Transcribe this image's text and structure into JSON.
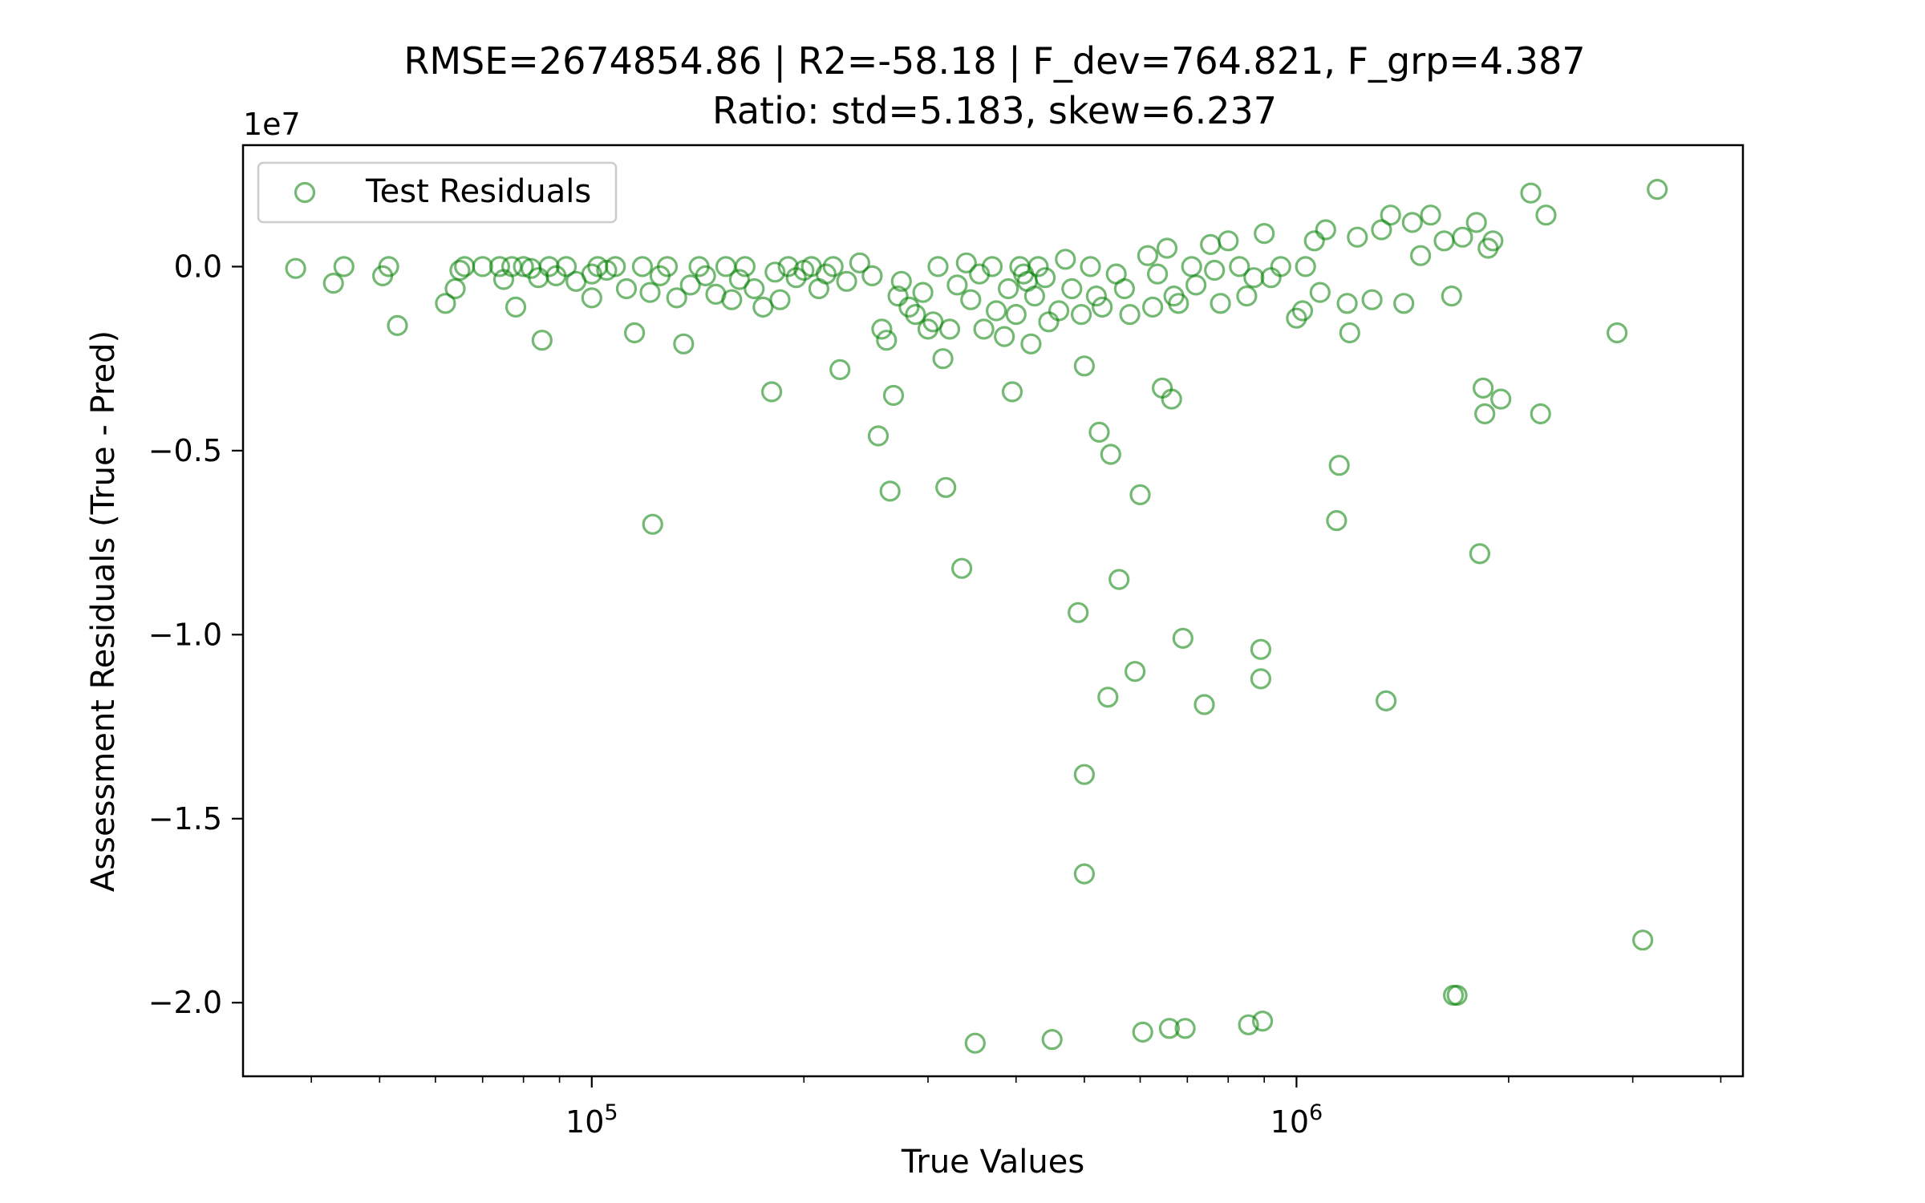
{
  "chart_data": {
    "type": "scatter",
    "title": "RMSE=2674854.86 | R2=-58.18 | F_dev=764.821, F_grp=4.387",
    "subtitle": "Ratio: std=5.183, skew=6.237",
    "xlabel": "True Values",
    "ylabel": "Assessment Residuals (True - Pred)",
    "x_scale": "log",
    "y_offset_label": "1e7",
    "xlim": [
      32000,
      4300000
    ],
    "ylim": [
      -22000000,
      3300000
    ],
    "x_ticks": [
      {
        "value": 100000,
        "base": "10",
        "exp": "5"
      },
      {
        "value": 1000000,
        "base": "10",
        "exp": "6"
      }
    ],
    "y_ticks": [
      {
        "value": 0,
        "label": "0.0"
      },
      {
        "value": -5000000,
        "label": "−0.5"
      },
      {
        "value": -10000000,
        "label": "−1.0"
      },
      {
        "value": -15000000,
        "label": "−1.5"
      },
      {
        "value": -20000000,
        "label": "−2.0"
      }
    ],
    "grid": false,
    "legend": {
      "position": "upper-left",
      "entries": [
        "Test Residuals"
      ]
    },
    "colors": {
      "marker": "#008000",
      "axes": "#000000",
      "background": "#ffffff"
    },
    "series": [
      {
        "name": "Test Residuals",
        "points": [
          [
            38000,
            -50000
          ],
          [
            43000,
            -450000
          ],
          [
            44500,
            0
          ],
          [
            50500,
            -250000
          ],
          [
            51500,
            0
          ],
          [
            53000,
            -1600000
          ],
          [
            62000,
            -1000000
          ],
          [
            64000,
            -600000
          ],
          [
            65000,
            -100000
          ],
          [
            66000,
            0
          ],
          [
            70000,
            0
          ],
          [
            74000,
            0
          ],
          [
            75000,
            -350000
          ],
          [
            77000,
            0
          ],
          [
            78000,
            -1100000
          ],
          [
            80000,
            0
          ],
          [
            82000,
            -50000
          ],
          [
            84000,
            -300000
          ],
          [
            85000,
            -2000000
          ],
          [
            87000,
            0
          ],
          [
            89000,
            -250000
          ],
          [
            92000,
            0
          ],
          [
            95000,
            -400000
          ],
          [
            100000,
            -200000
          ],
          [
            100000,
            -850000
          ],
          [
            102000,
            0
          ],
          [
            105000,
            -100000
          ],
          [
            108000,
            0
          ],
          [
            112000,
            -600000
          ],
          [
            115000,
            -1800000
          ],
          [
            118000,
            0
          ],
          [
            121000,
            -700000
          ],
          [
            122000,
            -7000000
          ],
          [
            125000,
            -250000
          ],
          [
            128000,
            0
          ],
          [
            132000,
            -850000
          ],
          [
            135000,
            -2100000
          ],
          [
            138000,
            -500000
          ],
          [
            142000,
            0
          ],
          [
            145000,
            -250000
          ],
          [
            150000,
            -750000
          ],
          [
            155000,
            0
          ],
          [
            158000,
            -900000
          ],
          [
            162000,
            -350000
          ],
          [
            165000,
            0
          ],
          [
            170000,
            -600000
          ],
          [
            175000,
            -1100000
          ],
          [
            180000,
            -3400000
          ],
          [
            182000,
            -150000
          ],
          [
            185000,
            -900000
          ],
          [
            190000,
            0
          ],
          [
            195000,
            -300000
          ],
          [
            200000,
            -100000
          ],
          [
            205000,
            0
          ],
          [
            210000,
            -600000
          ],
          [
            215000,
            -200000
          ],
          [
            220000,
            0
          ],
          [
            225000,
            -2800000
          ],
          [
            230000,
            -400000
          ],
          [
            240000,
            100000
          ],
          [
            250000,
            -250000
          ],
          [
            255000,
            -4600000
          ],
          [
            258000,
            -1700000
          ],
          [
            262000,
            -2000000
          ],
          [
            265000,
            -6100000
          ],
          [
            268000,
            -3500000
          ],
          [
            272000,
            -800000
          ],
          [
            275000,
            -400000
          ],
          [
            282000,
            -1100000
          ],
          [
            288000,
            -1300000
          ],
          [
            295000,
            -700000
          ],
          [
            300000,
            -1700000
          ],
          [
            305000,
            -1500000
          ],
          [
            310000,
            0
          ],
          [
            315000,
            -2500000
          ],
          [
            318000,
            -6000000
          ],
          [
            322000,
            -1700000
          ],
          [
            330000,
            -500000
          ],
          [
            335000,
            -8200000
          ],
          [
            340000,
            100000
          ],
          [
            345000,
            -900000
          ],
          [
            350000,
            -21100000
          ],
          [
            355000,
            -200000
          ],
          [
            360000,
            -1700000
          ],
          [
            370000,
            0
          ],
          [
            375000,
            -1200000
          ],
          [
            385000,
            -1900000
          ],
          [
            390000,
            -600000
          ],
          [
            395000,
            -3400000
          ],
          [
            400000,
            -1300000
          ],
          [
            405000,
            0
          ],
          [
            410000,
            -200000
          ],
          [
            415000,
            -400000
          ],
          [
            420000,
            -2100000
          ],
          [
            425000,
            -800000
          ],
          [
            430000,
            0
          ],
          [
            440000,
            -300000
          ],
          [
            445000,
            -1500000
          ],
          [
            450000,
            -21000000
          ],
          [
            460000,
            -1200000
          ],
          [
            470000,
            200000
          ],
          [
            480000,
            -600000
          ],
          [
            490000,
            -9400000
          ],
          [
            495000,
            -1300000
          ],
          [
            500000,
            -2700000
          ],
          [
            500000,
            -13800000
          ],
          [
            500000,
            -16500000
          ],
          [
            510000,
            0
          ],
          [
            520000,
            -800000
          ],
          [
            525000,
            -4500000
          ],
          [
            530000,
            -1100000
          ],
          [
            540000,
            -11700000
          ],
          [
            545000,
            -5100000
          ],
          [
            555000,
            -200000
          ],
          [
            560000,
            -8500000
          ],
          [
            570000,
            -600000
          ],
          [
            580000,
            -1300000
          ],
          [
            590000,
            -11000000
          ],
          [
            600000,
            -6200000
          ],
          [
            605000,
            -20800000
          ],
          [
            615000,
            300000
          ],
          [
            625000,
            -1100000
          ],
          [
            635000,
            -200000
          ],
          [
            645000,
            -3300000
          ],
          [
            655000,
            500000
          ],
          [
            660000,
            -20700000
          ],
          [
            665000,
            -3600000
          ],
          [
            670000,
            -800000
          ],
          [
            680000,
            -1000000
          ],
          [
            690000,
            -10100000
          ],
          [
            695000,
            -20700000
          ],
          [
            710000,
            0
          ],
          [
            720000,
            -500000
          ],
          [
            740000,
            -11900000
          ],
          [
            755000,
            600000
          ],
          [
            765000,
            -100000
          ],
          [
            780000,
            -1000000
          ],
          [
            800000,
            700000
          ],
          [
            830000,
            0
          ],
          [
            850000,
            -800000
          ],
          [
            855000,
            -20600000
          ],
          [
            870000,
            -300000
          ],
          [
            890000,
            -11200000
          ],
          [
            890000,
            -10400000
          ],
          [
            895000,
            -20500000
          ],
          [
            900000,
            900000
          ],
          [
            920000,
            -300000
          ],
          [
            950000,
            0
          ],
          [
            1000000,
            -1400000
          ],
          [
            1020000,
            -1200000
          ],
          [
            1030000,
            0
          ],
          [
            1060000,
            700000
          ],
          [
            1080000,
            -700000
          ],
          [
            1100000,
            1000000
          ],
          [
            1140000,
            -6900000
          ],
          [
            1150000,
            -5400000
          ],
          [
            1180000,
            -1000000
          ],
          [
            1190000,
            -1800000
          ],
          [
            1220000,
            800000
          ],
          [
            1280000,
            -900000
          ],
          [
            1320000,
            1000000
          ],
          [
            1340000,
            -11800000
          ],
          [
            1360000,
            1400000
          ],
          [
            1420000,
            -1000000
          ],
          [
            1460000,
            1200000
          ],
          [
            1500000,
            300000
          ],
          [
            1550000,
            1400000
          ],
          [
            1620000,
            700000
          ],
          [
            1660000,
            -800000
          ],
          [
            1670000,
            -19800000
          ],
          [
            1690000,
            -19800000
          ],
          [
            1720000,
            800000
          ],
          [
            1800000,
            1200000
          ],
          [
            1820000,
            -7800000
          ],
          [
            1840000,
            -3300000
          ],
          [
            1850000,
            -4000000
          ],
          [
            1870000,
            500000
          ],
          [
            1900000,
            700000
          ],
          [
            1950000,
            -3600000
          ],
          [
            2150000,
            2000000
          ],
          [
            2220000,
            -4000000
          ],
          [
            2260000,
            1400000
          ],
          [
            2850000,
            -1800000
          ],
          [
            3100000,
            -18300000
          ],
          [
            3250000,
            2100000
          ]
        ]
      }
    ]
  }
}
